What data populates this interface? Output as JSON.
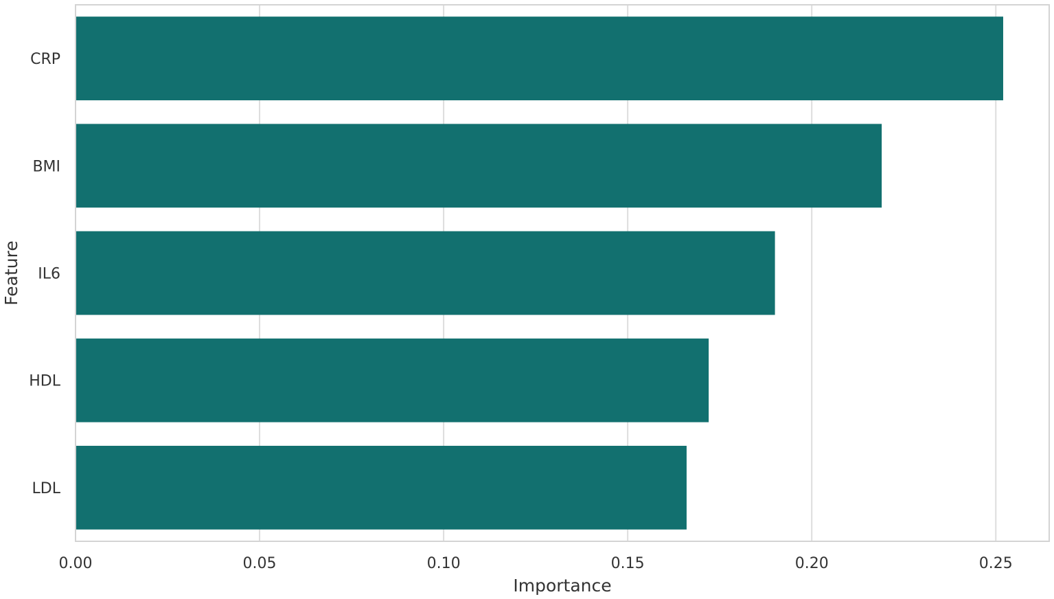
{
  "chart_data": {
    "type": "bar",
    "orientation": "horizontal",
    "categories": [
      "CRP",
      "BMI",
      "IL6",
      "HDL",
      "LDL"
    ],
    "values": [
      0.252,
      0.219,
      0.19,
      0.172,
      0.166
    ],
    "xlabel": "Importance",
    "ylabel": "Feature",
    "xlim": [
      0,
      0.2645
    ],
    "xticks": [
      0.0,
      0.05,
      0.1,
      0.15,
      0.2,
      0.25
    ],
    "xtick_labels": [
      "0.00",
      "0.05",
      "0.10",
      "0.15",
      "0.20",
      "0.25"
    ],
    "grid": true,
    "bar_color": "#12706f",
    "grid_color": "#dddddd",
    "frame_color": "#d4d4d4",
    "text_color": "#333333"
  }
}
